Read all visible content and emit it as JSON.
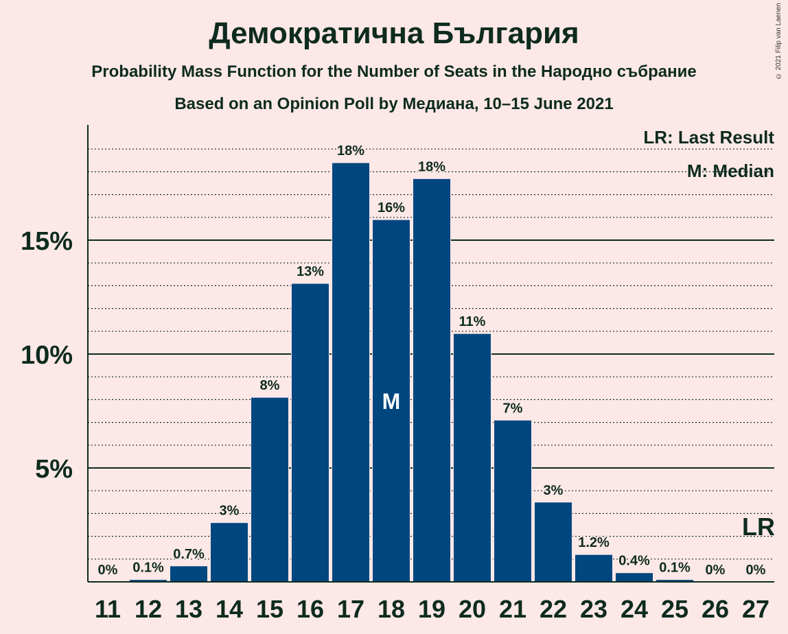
{
  "header": {
    "title": "Демократична България",
    "subtitle1": "Probability Mass Function for the Number of Seats in the Народно събрание",
    "subtitle2": "Based on an Opinion Poll by Медиана, 10–15 June 2021",
    "copyright": "© 2021 Filip van Laenen"
  },
  "legend": {
    "lr": "LR: Last Result",
    "m": "M: Median"
  },
  "colors": {
    "bar": "#00467f",
    "background": "#fde8e8",
    "text": "#0d2b1e"
  },
  "chart_data": {
    "type": "bar",
    "categories": [
      "11",
      "12",
      "13",
      "14",
      "15",
      "16",
      "17",
      "18",
      "19",
      "20",
      "21",
      "22",
      "23",
      "24",
      "25",
      "26",
      "27"
    ],
    "values": [
      0,
      0.1,
      0.7,
      2.6,
      8.1,
      13.1,
      18.4,
      15.9,
      17.7,
      10.9,
      7.1,
      3.5,
      1.2,
      0.4,
      0.1,
      0,
      0
    ],
    "labels": [
      "0%",
      "0.1%",
      "0.7%",
      "3%",
      "8%",
      "13%",
      "18%",
      "16%",
      "18%",
      "11%",
      "7%",
      "3%",
      "1.2%",
      "0.4%",
      "0.1%",
      "0%",
      "0%"
    ],
    "median_category": "18",
    "median_marker": "M",
    "last_result_category": "27",
    "last_result_marker": "LR",
    "ylim": [
      0,
      20
    ],
    "yticks": [
      5,
      10,
      15
    ],
    "ytick_labels": [
      "5%",
      "10%",
      "15%"
    ],
    "minor_grid_step": 1,
    "legend_position": "top-right"
  }
}
